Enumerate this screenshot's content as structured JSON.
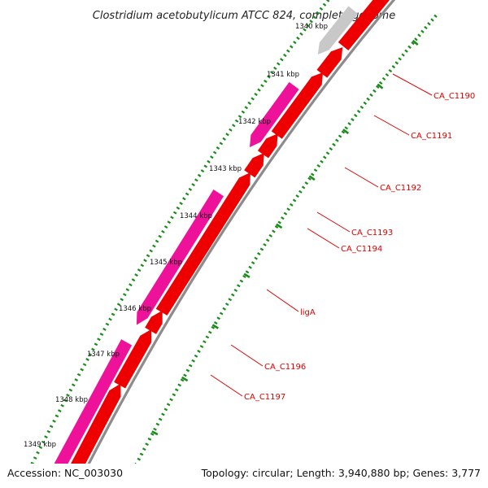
{
  "title": "Clostridium acetobutylicum ATCC 824, complete genome",
  "accession": "Accession: NC_003030",
  "topology": "Topology: circular; Length: 3,940,880 bp; Genes: 3,777",
  "colors": {
    "backbone": "#8c8c8c",
    "forward_gene": "#ee0000",
    "reverse_gene": "#ee1199",
    "other_gene": "#c8c8c8",
    "ticks": "#1a8c1a",
    "label": "#dd0000",
    "leader": "#dd0000",
    "faded": "#f7bdbd"
  },
  "ticks": [
    {
      "label": "1340 kbp"
    },
    {
      "label": "1341 kbp"
    },
    {
      "label": "1342 kbp"
    },
    {
      "label": "1343 kbp"
    },
    {
      "label": "1344 kbp"
    },
    {
      "label": "1345 kbp"
    },
    {
      "label": "1346 kbp"
    },
    {
      "label": "1347 kbp"
    },
    {
      "label": "1348 kbp"
    },
    {
      "label": "1349 kbp"
    }
  ],
  "gene_labels": [
    {
      "name": "CA_C1190"
    },
    {
      "name": "CA_C1191"
    },
    {
      "name": "CA_C1192"
    },
    {
      "name": "CA_C1193"
    },
    {
      "name": "CA_C1194"
    },
    {
      "name": "ligA"
    },
    {
      "name": "CA_C1196"
    },
    {
      "name": "CA_C1197"
    }
  ]
}
